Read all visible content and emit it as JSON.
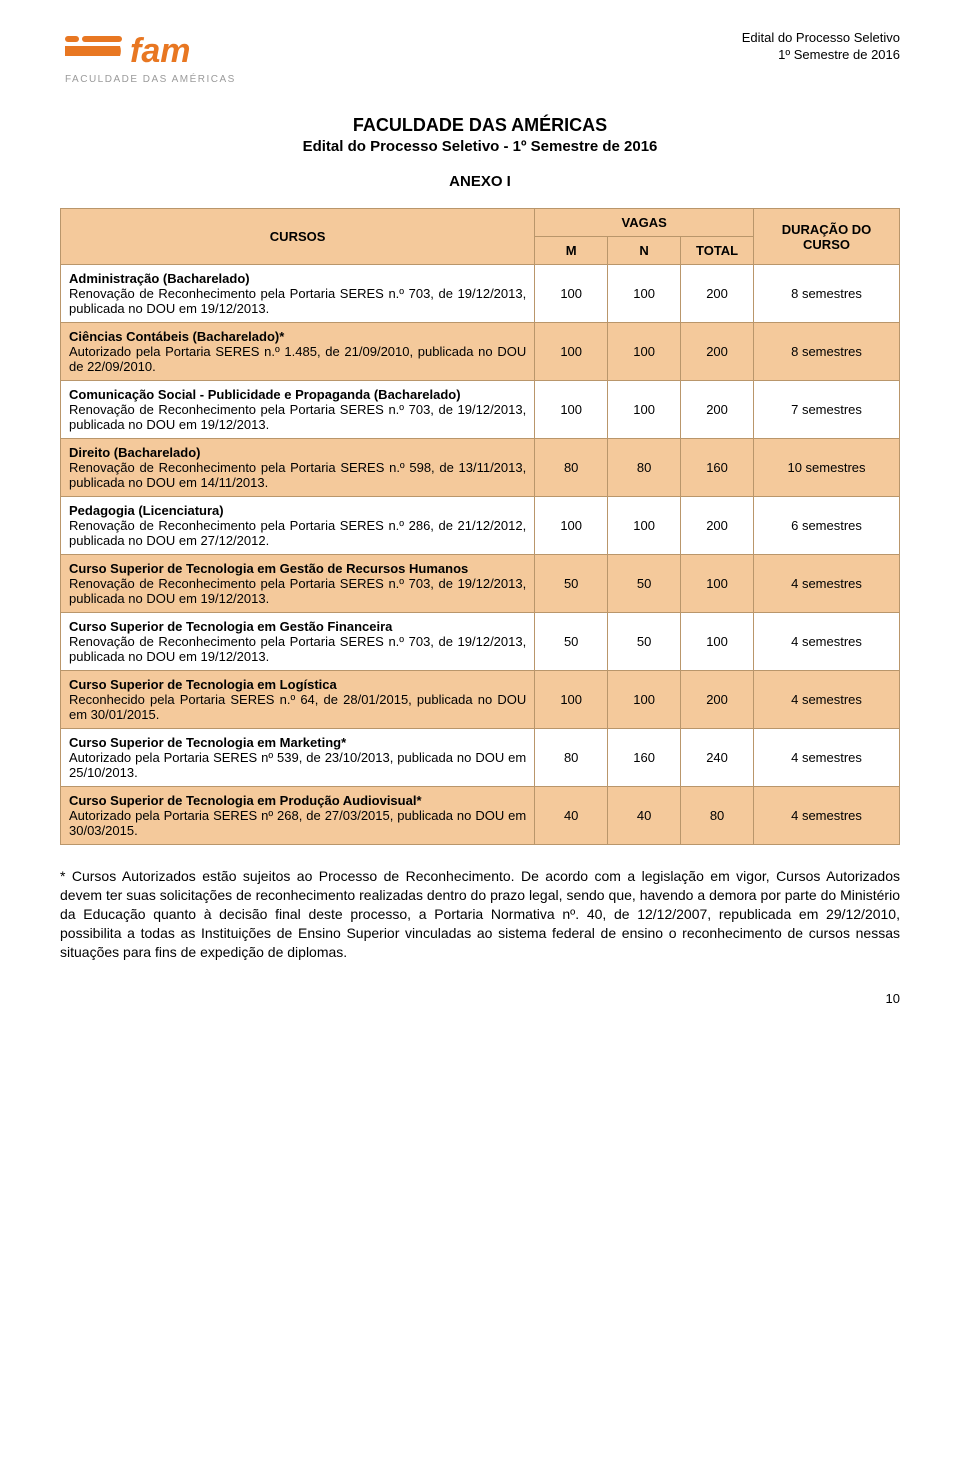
{
  "header": {
    "right_line1": "Edital do Processo Seletivo",
    "right_line2": "1º Semestre de 2016",
    "logo_text_top": "fam",
    "logo_text_bottom": "FACULDADE DAS AMÉRICAS"
  },
  "title": {
    "main": "FACULDADE DAS AMÉRICAS",
    "sub": "Edital do Processo Seletivo - 1º Semestre de 2016",
    "anexo": "ANEXO I"
  },
  "table": {
    "header_bg": "#f4c99b",
    "odd_bg": "#f4c99b",
    "even_bg": "#ffffff",
    "border_color": "#b9966b",
    "text_color": "#000000",
    "font_size": 13,
    "head": {
      "cursos": "CURSOS",
      "vagas": "VAGAS",
      "m": "M",
      "n": "N",
      "total": "TOTAL",
      "duracao": "DURAÇÃO DO CURSO"
    },
    "rows": [
      {
        "name": "Administração (Bacharelado)",
        "desc": "Renovação de Reconhecimento pela Portaria SERES n.º 703, de 19/12/2013, publicada no DOU em 19/12/2013.",
        "m": "100",
        "n": "100",
        "total": "200",
        "dur": "8 semestres"
      },
      {
        "name": "Ciências Contábeis (Bacharelado)*",
        "desc": "Autorizado pela Portaria SERES n.º 1.485, de 21/09/2010, publicada no DOU de 22/09/2010.",
        "m": "100",
        "n": "100",
        "total": "200",
        "dur": "8 semestres"
      },
      {
        "name": "Comunicação Social - Publicidade e Propaganda (Bacharelado)",
        "desc": "Renovação de Reconhecimento pela Portaria SERES n.º 703, de 19/12/2013, publicada no DOU em 19/12/2013.",
        "m": "100",
        "n": "100",
        "total": "200",
        "dur": "7 semestres"
      },
      {
        "name": "Direito (Bacharelado)",
        "desc": "Renovação de Reconhecimento pela Portaria SERES n.º 598, de 13/11/2013, publicada no DOU em 14/11/2013.",
        "m": "80",
        "n": "80",
        "total": "160",
        "dur": "10 semestres"
      },
      {
        "name": "Pedagogia (Licenciatura)",
        "desc": "Renovação de Reconhecimento pela Portaria SERES n.º 286, de 21/12/2012, publicada no DOU em 27/12/2012.",
        "m": "100",
        "n": "100",
        "total": "200",
        "dur": "6 semestres"
      },
      {
        "name": "Curso Superior de Tecnologia em Gestão de Recursos Humanos",
        "desc": "Renovação de Reconhecimento pela Portaria SERES n.º 703, de 19/12/2013, publicada no DOU em 19/12/2013.",
        "m": "50",
        "n": "50",
        "total": "100",
        "dur": "4 semestres"
      },
      {
        "name": "Curso Superior de Tecnologia em Gestão Financeira",
        "desc": "Renovação de Reconhecimento pela Portaria SERES n.º 703, de 19/12/2013, publicada no DOU em 19/12/2013.",
        "m": "50",
        "n": "50",
        "total": "100",
        "dur": "4 semestres"
      },
      {
        "name": "Curso Superior de Tecnologia em Logística",
        "desc": "Reconhecido pela Portaria SERES n.º 64, de 28/01/2015, publicada no DOU em 30/01/2015.",
        "m": "100",
        "n": "100",
        "total": "200",
        "dur": "4 semestres"
      },
      {
        "name": "Curso Superior de Tecnologia em Marketing*",
        "desc": "Autorizado pela Portaria SERES nº 539, de 23/10/2013, publicada no DOU em 25/10/2013.",
        "m": "80",
        "n": "160",
        "total": "240",
        "dur": "4 semestres"
      },
      {
        "name": "Curso Superior de Tecnologia em Produção Audiovisual*",
        "desc": "Autorizado pela Portaria SERES nº 268, de 27/03/2015, publicada no DOU em 30/03/2015.",
        "m": "40",
        "n": "40",
        "total": "80",
        "dur": "4 semestres"
      }
    ]
  },
  "footnote": "* Cursos Autorizados estão sujeitos ao Processo de Reconhecimento. De acordo com a legislação em vigor, Cursos Autorizados devem ter suas solicitações de reconhecimento realizadas dentro do prazo legal, sendo que, havendo a demora por parte do Ministério da Educação quanto à decisão final deste processo, a Portaria Normativa nº. 40, de 12/12/2007, republicada em 29/12/2010, possibilita a todas as Instituições de Ensino Superior vinculadas ao sistema federal de ensino o reconhecimento de cursos nessas situações para fins de expedição de diplomas.",
  "page_number": "10",
  "colors": {
    "logo_orange": "#e87722",
    "logo_gray": "#9a9a9a"
  }
}
